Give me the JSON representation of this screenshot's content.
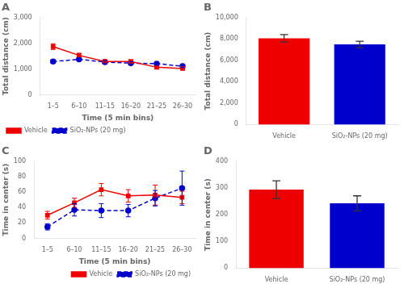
{
  "chart_data": [
    {
      "type": "line",
      "title": "A",
      "categories": [
        "1–5",
        "6–10",
        "11–15",
        "16–20",
        "21–25",
        "26–30"
      ],
      "xlabel": "Time (5 min bins)",
      "ylabel": "Total distance (cm)",
      "series": [
        {
          "name": "Vehicle",
          "color": "#EE0000",
          "marker": "square",
          "line_style": "solid",
          "values": [
            1870,
            1530,
            1290,
            1290,
            1070,
            1020
          ],
          "errors": [
            110,
            80,
            65,
            70,
            55,
            50
          ]
        },
        {
          "name": "SiO₂-NPs (20 mg)",
          "color": "#0000CC",
          "marker": "circle",
          "line_style": "dashed",
          "values": [
            1290,
            1380,
            1270,
            1230,
            1210,
            1110
          ],
          "errors": [
            65,
            60,
            55,
            55,
            65,
            55
          ]
        }
      ],
      "ylim": [
        0,
        3000
      ],
      "yticks": [
        0,
        {
          "value": 1000,
          "label": "1,000"
        },
        {
          "value": 2000,
          "label": "2,000"
        },
        {
          "value": 3000,
          "label": "3,000"
        }
      ],
      "grid": false,
      "legend": "lower left"
    },
    {
      "type": "bar",
      "title": "B",
      "categories": [
        "Vehicle",
        "SiO₂-NPs (20 mg)"
      ],
      "values": [
        8050,
        7480
      ],
      "errors": [
        350,
        300
      ],
      "colors": [
        "#EE0000",
        "#0000CC"
      ],
      "ylabel": "Total distance (cm)",
      "ylim": [
        0,
        10000
      ],
      "yticks": [
        0,
        {
          "value": 2000,
          "label": "2,000"
        },
        {
          "value": 4000,
          "label": "4,000"
        },
        {
          "value": 6000,
          "label": "6,000"
        },
        {
          "value": 8000,
          "label": "8,000"
        },
        {
          "value": 10000,
          "label": "10,000"
        }
      ],
      "grid": false
    },
    {
      "type": "line",
      "title": "C",
      "categories": [
        "1–5",
        "6–10",
        "11–15",
        "16–20",
        "21–25",
        "26–30"
      ],
      "xlabel": "Time (5 min bins)",
      "ylabel": "Time in center (s)",
      "series": [
        {
          "name": "Vehicle",
          "color": "#EE0000",
          "marker": "square",
          "line_style": "solid",
          "values": [
            30,
            46,
            63,
            55,
            56,
            53
          ],
          "errors": [
            5,
            6,
            8,
            8,
            13,
            8
          ]
        },
        {
          "name": "SiO₂-NPs (20 mg)",
          "color": "#0000CC",
          "marker": "circle",
          "line_style": "dashed",
          "values": [
            15,
            37,
            36,
            36,
            52,
            65
          ],
          "errors": [
            4,
            8,
            9,
            8,
            10,
            22
          ]
        }
      ],
      "ylim": [
        0,
        100
      ],
      "yticks": [
        0,
        20,
        40,
        60,
        80,
        100
      ],
      "grid": false,
      "legend": "lower right"
    },
    {
      "type": "bar",
      "title": "D",
      "categories": [
        "Vehicle",
        "SiO₂-NPs (20 mg)"
      ],
      "values": [
        293,
        242
      ],
      "errors": [
        33,
        28
      ],
      "colors": [
        "#EE0000",
        "#0000CC"
      ],
      "ylabel": "Time in center (s)",
      "ylim": [
        0,
        400
      ],
      "yticks": [
        0,
        100,
        200,
        300,
        400
      ],
      "grid": false
    }
  ]
}
